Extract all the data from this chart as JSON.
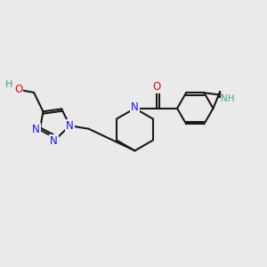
{
  "bg_color": "#eaeaea",
  "bond_color": "#1a1a1a",
  "n_color": "#1414ff",
  "o_color": "#ff0000",
  "nh_color": "#4a9a9a",
  "h_color": "#4a9a9a",
  "lw": 1.5,
  "fs": 8.0,
  "doff": 0.08,
  "xlim": [
    0,
    10
  ],
  "ylim": [
    1,
    9
  ]
}
